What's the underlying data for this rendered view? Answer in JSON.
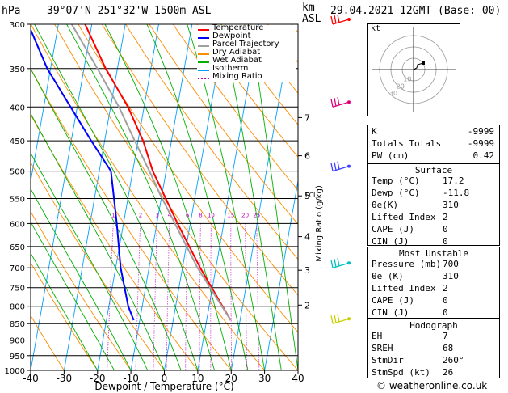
{
  "header": {
    "hpa_unit": "hPa",
    "location": "39°07'N  251°32'W  1500m  ASL",
    "km_unit": "km",
    "asl_unit": "ASL",
    "valid_time": "29.04.2021  12GMT  (Base: 00)"
  },
  "chart_data": {
    "type": "line",
    "title": "Skew-T log-P diagram",
    "xlabel": "Dewpoint / Temperature (°C)",
    "ylabel": "hPa",
    "xlim": [
      -40,
      40
    ],
    "ylim": [
      1000,
      300
    ],
    "pressure_ticks": [
      300,
      350,
      400,
      450,
      500,
      550,
      600,
      650,
      700,
      750,
      800,
      850,
      900,
      950,
      1000
    ],
    "temp_ticks": [
      -40,
      -30,
      -20,
      -10,
      0,
      10,
      20,
      30,
      40
    ],
    "skew_deg_per_decade": 35,
    "altitude_ticks": [
      {
        "label": "7",
        "p": 415
      },
      {
        "label": "6",
        "p": 474
      },
      {
        "label": "5",
        "p": 545
      },
      {
        "label": "4",
        "p": 628
      },
      {
        "label": "3",
        "p": 706
      },
      {
        "label": "2",
        "p": 797
      }
    ],
    "lcl_label": "LCL",
    "lcl_p": 543,
    "mixing_ratio_title": "Mixing Ratio (g/kg)",
    "mixing_ratios": [
      1,
      2,
      3,
      4,
      6,
      8,
      10,
      15,
      20,
      25
    ],
    "mixing_ratio_label_p": 590,
    "series": [
      {
        "name": "Temperature",
        "color": "#ff0000",
        "points": [
          [
            840,
            17.2
          ],
          [
            800,
            14.0
          ],
          [
            700,
            5.3
          ],
          [
            600,
            -3.8
          ],
          [
            500,
            -14.0
          ],
          [
            450,
            -18.5
          ],
          [
            400,
            -24.8
          ],
          [
            350,
            -33.5
          ],
          [
            300,
            -42.0
          ]
        ]
      },
      {
        "name": "Dewpoint",
        "color": "#0000ff",
        "points": [
          [
            840,
            -11.8
          ],
          [
            800,
            -14.2
          ],
          [
            700,
            -18.5
          ],
          [
            600,
            -22.0
          ],
          [
            500,
            -26.5
          ],
          [
            450,
            -34.0
          ],
          [
            400,
            -42.0
          ],
          [
            350,
            -51.0
          ],
          [
            300,
            -59.0
          ]
        ]
      },
      {
        "name": "Parcel Trajectory",
        "color": "#a0a0a0",
        "points": [
          [
            840,
            17.2
          ],
          [
            700,
            4.5
          ],
          [
            543,
            -10.5
          ],
          [
            500,
            -15.0
          ],
          [
            450,
            -21.0
          ],
          [
            400,
            -27.5
          ],
          [
            350,
            -36.0
          ],
          [
            300,
            -46.0
          ]
        ]
      }
    ],
    "legend": [
      {
        "label": "Temperature",
        "color": "#ff0000",
        "dash": "none"
      },
      {
        "label": "Dewpoint",
        "color": "#0000ff",
        "dash": "none"
      },
      {
        "label": "Parcel Trajectory",
        "color": "#a0a0a0",
        "dash": "none"
      },
      {
        "label": "Dry Adiabat",
        "color": "#ff8c00",
        "dash": "none"
      },
      {
        "label": "Wet Adiabat",
        "color": "#00b000",
        "dash": "none"
      },
      {
        "label": "Isotherm",
        "color": "#00a0ff",
        "dash": "none"
      },
      {
        "label": "Mixing Ratio",
        "color": "#c000c0",
        "dash": "dots"
      }
    ],
    "wind_barbs": [
      {
        "p": 300,
        "color": "#ff0000"
      },
      {
        "p": 400,
        "color": "#e0007a"
      },
      {
        "p": 500,
        "color": "#4040ff"
      },
      {
        "p": 700,
        "color": "#00c0c0"
      },
      {
        "p": 850,
        "color": "#c8d000"
      }
    ]
  },
  "hodograph": {
    "label": "kt",
    "ring_labels": [
      "10",
      "20",
      "30"
    ],
    "points": [
      [
        0,
        0
      ],
      [
        2,
        1
      ],
      [
        4,
        2
      ],
      [
        5,
        6
      ],
      [
        12,
        8
      ]
    ]
  },
  "indices": {
    "rows": [
      {
        "label": "K",
        "value": "-9999"
      },
      {
        "label": "Totals Totals",
        "value": "-9999"
      },
      {
        "label": "PW (cm)",
        "value": "0.42"
      }
    ]
  },
  "surface": {
    "title": "Surface",
    "rows": [
      {
        "label": "Temp (°C)",
        "value": "17.2"
      },
      {
        "label": "Dewp (°C)",
        "value": "-11.8"
      },
      {
        "label": "θe(K)",
        "value": "310"
      },
      {
        "label": "Lifted Index",
        "value": "2"
      },
      {
        "label": "CAPE (J)",
        "value": "0"
      },
      {
        "label": "CIN (J)",
        "value": "0"
      }
    ]
  },
  "most_unstable": {
    "title": "Most Unstable",
    "rows": [
      {
        "label": "Pressure (mb)",
        "value": "700"
      },
      {
        "label": "θe (K)",
        "value": "310"
      },
      {
        "label": "Lifted Index",
        "value": "2"
      },
      {
        "label": "CAPE (J)",
        "value": "0"
      },
      {
        "label": "CIN (J)",
        "value": "0"
      }
    ]
  },
  "hodograph_stats": {
    "title": "Hodograph",
    "rows": [
      {
        "label": "EH",
        "value": "7"
      },
      {
        "label": "SREH",
        "value": "68"
      },
      {
        "label": "StmDir",
        "value": "260°"
      },
      {
        "label": "StmSpd (kt)",
        "value": "26"
      }
    ]
  },
  "footer": {
    "copyright": "© weatheronline.co.uk"
  }
}
